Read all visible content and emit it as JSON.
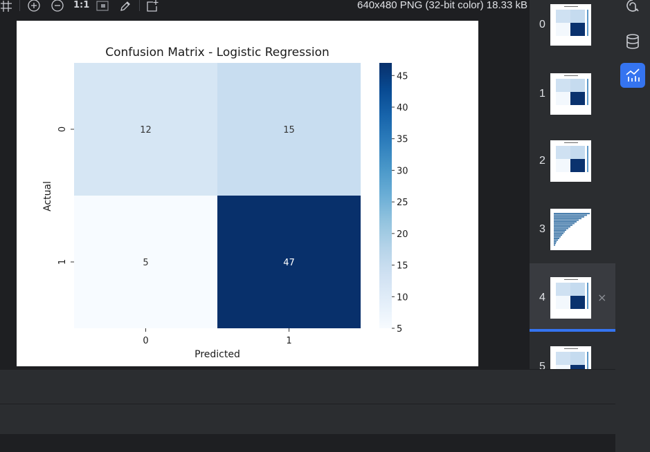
{
  "toolbar": {
    "actual_size_label": "1:1",
    "image_info": "640x480 PNG (32-bit color) 18.33 kB",
    "icons": [
      "grid-icon",
      "zoom-in-icon",
      "zoom-out-icon",
      "actual-size-label",
      "fit-window-icon",
      "color-picker-icon",
      "open-external-icon"
    ]
  },
  "chart_data": {
    "type": "heatmap",
    "title": "Confusion Matrix - Logistic Regression",
    "xlabel": "Predicted",
    "ylabel": "Actual",
    "x_categories": [
      "0",
      "1"
    ],
    "y_categories": [
      "0",
      "1"
    ],
    "values": [
      [
        12,
        15
      ],
      [
        5,
        47
      ]
    ],
    "colormap": "Blues",
    "colorbar": {
      "min": 5,
      "max": 47,
      "ticks": [
        "5",
        "10",
        "15",
        "20",
        "25",
        "30",
        "35",
        "40",
        "45"
      ]
    }
  },
  "thumbnails": {
    "items": [
      {
        "index": "0",
        "kind": "confusion-matrix"
      },
      {
        "index": "1",
        "kind": "confusion-matrix"
      },
      {
        "index": "2",
        "kind": "confusion-matrix"
      },
      {
        "index": "3",
        "kind": "bar-chart"
      },
      {
        "index": "4",
        "kind": "confusion-matrix",
        "selected": true
      },
      {
        "index": "5",
        "kind": "confusion-matrix"
      }
    ],
    "close_symbol": "×"
  },
  "right_toolbar": {
    "icons": [
      "ai-assistant-icon",
      "database-icon",
      "plots-icon"
    ],
    "active": "plots-icon"
  },
  "colors": {
    "accent": "#3574f0",
    "panel_bg": "#2b2d30",
    "editor_bg": "#1e1f22"
  }
}
